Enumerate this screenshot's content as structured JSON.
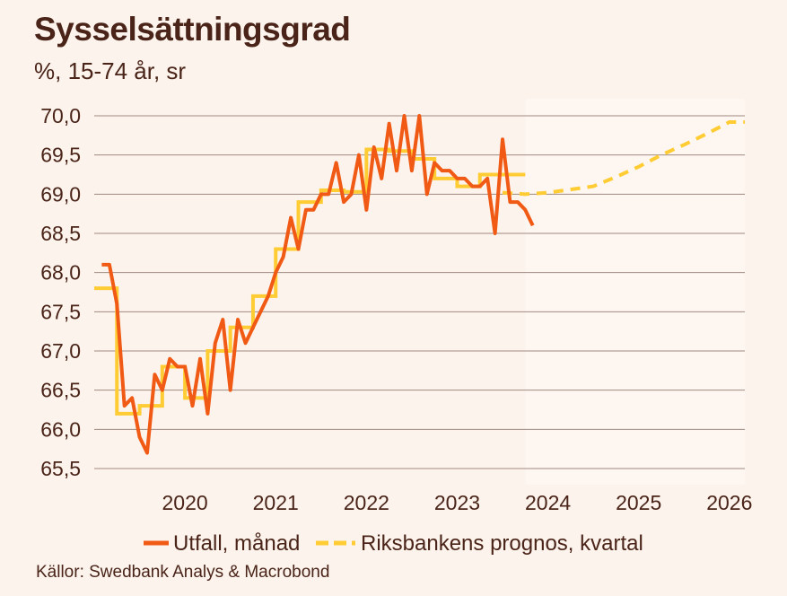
{
  "title": "Sysselsättningsgrad",
  "subtitle": "%, 15-74 år, sr",
  "source": "Källor: Swedbank Analys & Macrobond",
  "colors": {
    "background": "#fbf3ec",
    "forecast_shade": "#fdf6f1",
    "grid": "#a08a80",
    "outcome": "#f05a14",
    "forecast": "#ffcc33",
    "text": "#4a2418"
  },
  "chart_data": {
    "type": "line",
    "title": "Sysselsättningsgrad",
    "subtitle": "%, 15-74 år, sr",
    "xlabel": "",
    "ylabel": "",
    "ylim": [
      65.5,
      70.0
    ],
    "xlim": [
      2019.5,
      2026.67
    ],
    "y_ticks": [
      70.0,
      69.5,
      69.0,
      68.5,
      68.0,
      67.5,
      67.0,
      66.5,
      66.0,
      65.5
    ],
    "y_tick_labels": [
      "70,0",
      "69,5",
      "69,0",
      "68,5",
      "68,0",
      "67,5",
      "67,0",
      "66,5",
      "66,0",
      "65,5"
    ],
    "x_ticks": [
      2020,
      2021,
      2022,
      2023,
      2024,
      2025,
      2026
    ],
    "x_tick_labels": [
      "2020",
      "2021",
      "2022",
      "2023",
      "2024",
      "2025",
      "2026"
    ],
    "grid": true,
    "legend_position": "bottom",
    "forecast_region_start": 2024.25,
    "series": [
      {
        "name": "Utfall, månad",
        "style": "solid",
        "frequency": "monthly",
        "color": "#f05a14",
        "x": [
          2019.583,
          2019.667,
          2019.75,
          2019.833,
          2019.917,
          2020.0,
          2020.083,
          2020.167,
          2020.25,
          2020.333,
          2020.417,
          2020.5,
          2020.583,
          2020.667,
          2020.75,
          2020.833,
          2020.917,
          2021.0,
          2021.083,
          2021.167,
          2021.25,
          2021.333,
          2021.417,
          2021.5,
          2021.583,
          2021.667,
          2021.75,
          2021.833,
          2021.917,
          2022.0,
          2022.083,
          2022.167,
          2022.25,
          2022.333,
          2022.417,
          2022.5,
          2022.583,
          2022.667,
          2022.75,
          2022.833,
          2022.917,
          2023.0,
          2023.083,
          2023.167,
          2023.25,
          2023.333,
          2023.417,
          2023.5,
          2023.583,
          2023.667,
          2023.75,
          2023.833,
          2023.917,
          2024.0,
          2024.083,
          2024.167,
          2024.25,
          2024.333
        ],
        "values": [
          68.1,
          68.1,
          67.6,
          66.3,
          66.4,
          65.9,
          65.7,
          66.7,
          66.5,
          66.9,
          66.8,
          66.8,
          66.3,
          66.9,
          66.2,
          67.1,
          67.4,
          66.5,
          67.4,
          67.1,
          67.3,
          67.5,
          67.7,
          68.0,
          68.2,
          68.7,
          68.3,
          68.8,
          68.8,
          69.0,
          69.0,
          69.4,
          68.9,
          69.0,
          69.5,
          68.8,
          69.6,
          69.2,
          69.9,
          69.3,
          70.0,
          69.3,
          70.0,
          69.0,
          69.4,
          69.3,
          69.3,
          69.2,
          69.2,
          69.1,
          69.1,
          69.2,
          68.5,
          69.7,
          68.9,
          68.9,
          68.8,
          68.6
        ]
      },
      {
        "name": "Riksbankens prognos, kvartal",
        "style": "solid-then-dashed",
        "frequency": "quarterly",
        "color": "#ffcc33",
        "x_solid": [
          2019.5,
          2019.75,
          2020.0,
          2020.25,
          2020.5,
          2020.75,
          2021.0,
          2021.25,
          2021.5,
          2021.75,
          2022.0,
          2022.25,
          2022.5,
          2022.75,
          2023.0,
          2023.25,
          2023.5,
          2023.75,
          2024.0
        ],
        "values_solid": [
          67.8,
          66.2,
          66.3,
          66.8,
          66.4,
          67.0,
          67.3,
          67.7,
          68.3,
          68.9,
          69.05,
          69.03,
          69.57,
          69.55,
          69.45,
          69.2,
          69.1,
          69.25,
          69.25
        ],
        "x_dashed": [
          2024.0,
          2024.25,
          2024.5,
          2024.75,
          2025.0,
          2025.25,
          2025.5,
          2025.75,
          2026.0,
          2026.25,
          2026.5,
          2026.67
        ],
        "values_dashed": [
          69.02,
          69.0,
          69.02,
          69.06,
          69.1,
          69.22,
          69.35,
          69.5,
          69.63,
          69.77,
          69.92,
          69.92
        ]
      }
    ]
  }
}
